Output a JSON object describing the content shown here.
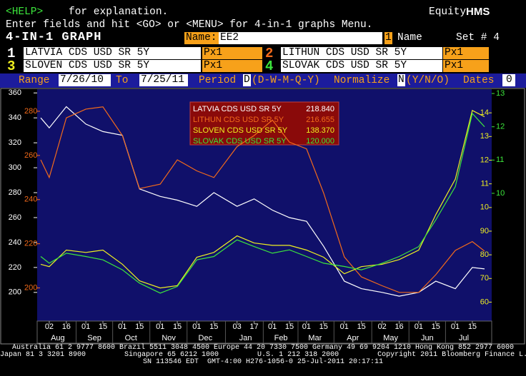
{
  "header": {
    "help_key": "<HELP>",
    "help_text": "for explanation.",
    "product": "Equity",
    "function": "HMS",
    "instructions": "Enter fields and hit <GO> or <MENU> for 4-in-1 graphs Menu."
  },
  "form": {
    "screen_title": "4-IN-1 GRAPH",
    "name_label": "Name:",
    "name_value": "EE2",
    "name_index": "1",
    "name_field": "Name",
    "set_label": "Set # 4",
    "securities": [
      {
        "number": "1",
        "field": "Px1"
      },
      {
        "number": "2",
        "field": "Px1"
      },
      {
        "number": "3",
        "field": "Px1"
      },
      {
        "number": "4",
        "field": "Px1"
      }
    ],
    "range_label": "Range",
    "range_start": "7/26/10",
    "to_label": "To",
    "range_end": "7/25/11",
    "period_label": "Period",
    "period_value": "D",
    "period_options": "(D-W-M-Q-Y)",
    "normalize_label": "Normalize",
    "normalize_value": "N",
    "normalize_options": "(Y/N/O)",
    "dates_label": "Dates",
    "dates_value": "0"
  },
  "chart_data": {
    "type": "line",
    "x": [
      "2010-07-26",
      "2010-08-02",
      "2010-08-16",
      "2010-09-01",
      "2010-09-15",
      "2010-10-01",
      "2010-10-15",
      "2010-11-01",
      "2010-11-15",
      "2010-12-01",
      "2010-12-15",
      "2011-01-03",
      "2011-01-17",
      "2011-02-01",
      "2011-02-15",
      "2011-03-01",
      "2011-03-15",
      "2011-04-01",
      "2011-04-15",
      "2011-05-02",
      "2011-05-16",
      "2011-06-01",
      "2011-06-15",
      "2011-07-01",
      "2011-07-15",
      "2011-07-25"
    ],
    "xlim": [
      "2010-07-26",
      "2011-07-25"
    ],
    "xticks": [
      {
        "value": "2010-08-02",
        "label": "02"
      },
      {
        "value": "2010-08-16",
        "label": "16"
      },
      {
        "value": "2010-09-01",
        "label": "01"
      },
      {
        "value": "2010-09-15",
        "label": "15"
      },
      {
        "value": "2010-10-01",
        "label": "01"
      },
      {
        "value": "2010-10-15",
        "label": "15"
      },
      {
        "value": "2010-11-01",
        "label": "01"
      },
      {
        "value": "2010-11-15",
        "label": "15"
      },
      {
        "value": "2010-12-01",
        "label": "01"
      },
      {
        "value": "2010-12-15",
        "label": "15"
      },
      {
        "value": "2011-01-03",
        "label": "03"
      },
      {
        "value": "2011-01-17",
        "label": "17"
      },
      {
        "value": "2011-02-01",
        "label": "01"
      },
      {
        "value": "2011-02-15",
        "label": "15"
      },
      {
        "value": "2011-03-01",
        "label": "01"
      },
      {
        "value": "2011-03-15",
        "label": "15"
      },
      {
        "value": "2011-04-01",
        "label": "01"
      },
      {
        "value": "2011-04-15",
        "label": "15"
      },
      {
        "value": "2011-05-02",
        "label": "02"
      },
      {
        "value": "2011-05-16",
        "label": "16"
      },
      {
        "value": "2011-06-01",
        "label": "01"
      },
      {
        "value": "2011-06-15",
        "label": "15"
      },
      {
        "value": "2011-07-01",
        "label": "01"
      },
      {
        "value": "2011-07-15",
        "label": "15"
      }
    ],
    "month_labels": [
      "Aug",
      "Sep",
      "Oct",
      "Nov",
      "Dec",
      "Jan",
      "Feb",
      "Mar",
      "Apr",
      "May",
      "Jun",
      "Jul"
    ],
    "ylim": [
      177,
      363
    ],
    "yticks": [
      200,
      220,
      240,
      260,
      280,
      300,
      320,
      340,
      360
    ],
    "y2lim": [
      185,
      290
    ],
    "y2ticks": [
      200,
      220,
      240,
      260,
      280
    ],
    "y3lim": [
      52,
      150
    ],
    "y3ticks": [
      60,
      70,
      80,
      90,
      {
        "value": 100,
        "label": "10"
      },
      {
        "value": 110,
        "label": "11"
      },
      {
        "value": 120,
        "label": "12"
      },
      {
        "value": 130,
        "label": "13"
      },
      {
        "value": 140,
        "label": "14"
      }
    ],
    "y4lim": [
      61.6,
      131.3
    ],
    "y4ticks": [
      {
        "value": 100,
        "label": "10"
      },
      {
        "value": 110,
        "label": "11"
      },
      {
        "value": 120,
        "label": "12"
      },
      {
        "value": 130,
        "label": "13"
      }
    ],
    "series": [
      {
        "name": "LATVIA CDS USD SR 5Y",
        "color": "#ffffff",
        "axis": "y",
        "values": [
          340,
          332,
          349,
          335,
          329,
          326,
          283,
          277,
          274,
          269,
          280,
          269,
          275,
          266,
          260,
          257,
          237,
          209,
          203,
          200,
          197,
          200,
          209,
          203,
          220,
          218.84
        ],
        "value_labels": [
          null,
          null,
          null,
          null,
          null,
          null,
          null,
          null,
          null,
          null,
          null,
          null,
          null,
          null,
          null,
          null,
          null,
          null,
          null,
          null,
          null,
          null,
          null,
          null,
          null,
          "218.840"
        ]
      },
      {
        "name": "LITHUN CDS USD SR 5Y",
        "color": "#f26a1b",
        "axis": "y2",
        "values": [
          258,
          250,
          277,
          281,
          282,
          269,
          245,
          247,
          258,
          253,
          250,
          264,
          269,
          276,
          266,
          263,
          243,
          214,
          205,
          201,
          198,
          198,
          206,
          217,
          221,
          216.655
        ],
        "value_labels": [
          null,
          null,
          null,
          null,
          null,
          null,
          null,
          null,
          null,
          null,
          null,
          null,
          null,
          null,
          null,
          null,
          null,
          null,
          null,
          null,
          null,
          null,
          null,
          null,
          null,
          "216.655"
        ]
      },
      {
        "name": "SLOVEN CDS USD SR 5Y",
        "color": "#f0f020",
        "axis": "y3",
        "values": [
          76,
          75,
          82,
          81,
          82,
          76,
          69,
          66,
          67,
          79,
          81,
          88,
          85,
          84,
          84,
          82,
          79,
          72,
          75,
          76,
          78,
          82,
          97,
          112,
          141,
          138.37
        ],
        "value_labels": [
          null,
          null,
          null,
          null,
          null,
          null,
          null,
          null,
          null,
          null,
          null,
          null,
          null,
          null,
          null,
          null,
          null,
          null,
          null,
          null,
          null,
          null,
          null,
          null,
          null,
          "138.370"
        ]
      },
      {
        "name": "SLOVAK CDS USD SR 5Y",
        "color": "#3ce63c",
        "axis": "y4",
        "values": [
          81,
          79,
          82,
          81,
          80,
          77,
          73,
          70,
          72,
          80,
          81,
          86,
          84,
          82,
          83,
          81,
          79,
          78,
          77,
          79,
          81,
          84,
          92,
          102,
          124,
          120
        ],
        "value_labels": [
          null,
          null,
          null,
          null,
          null,
          null,
          null,
          null,
          null,
          null,
          null,
          null,
          null,
          null,
          null,
          null,
          null,
          null,
          null,
          null,
          null,
          null,
          null,
          null,
          null,
          "120.000"
        ]
      }
    ]
  },
  "footer": {
    "lines": [
      "Australia 61 2 9777 8600 Brazil 5511 3048 4500 Europe 44 20 7330 7500 Germany 49 69 9204 1210 Hong Kong 852 2977 6000",
      "Japan 81 3 3201 8900         Singapore 65 6212 1000         U.S. 1 212 318 2000         Copyright 2011 Bloomberg Finance L.P.",
      "SN 113546 EDT  GMT-4:00 H276-1056-0 25-Jul-2011 20:17:11"
    ]
  }
}
